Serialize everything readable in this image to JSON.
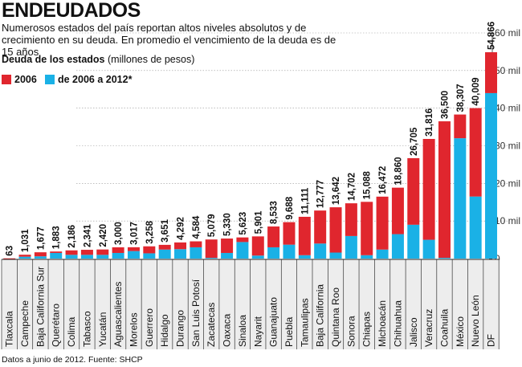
{
  "title": "ENDEUDADOS",
  "subtitle": "Numerosos estados del país reportan altos niveles absolutos y de crecimiento en su deuda. En promedio el vencimiento de la deuda es de 15 años",
  "section_bold": "Deuda de los estados",
  "section_unit": " (millones de pesos)",
  "source": "Datos a junio de 2012. Fuente: SHCP",
  "colors": {
    "red": "#e0262e",
    "blue": "#1ab1e6",
    "grid": "#999999"
  },
  "chart_data": {
    "type": "bar",
    "stacked": true,
    "ylim": [
      0,
      60000
    ],
    "yticks": [
      {
        "value": 0,
        "label": "0"
      },
      {
        "value": 10000,
        "label": "10 mil"
      },
      {
        "value": 20000,
        "label": "20 mil"
      },
      {
        "value": 30000,
        "label": "30 mil"
      },
      {
        "value": 40000,
        "label": "40 mil"
      },
      {
        "value": 50000,
        "label": "50 mil"
      },
      {
        "value": 60000,
        "label": "60 mil"
      }
    ],
    "categories": [
      "Tlaxcala",
      "Campeche",
      "Baja California Sur",
      "Querétaro",
      "Colima",
      "Tabasco",
      "Yucatán",
      "Aguascalientes",
      "Morelos",
      "Guerrero",
      "Hidalgo",
      "Durango",
      "San Luis Potosí",
      "Zacatecas",
      "Oaxaca",
      "Sinaloa",
      "Nayarit",
      "Guanajuato",
      "Puebla",
      "Tamaulipas",
      "Baja California",
      "Quintana Roo",
      "Sonora",
      "Chiapas",
      "Michoacán",
      "Chihuahua",
      "Jalisco",
      "Veracruz",
      "Coahuila",
      "México",
      "Nuevo León",
      "DF"
    ],
    "total_labels": [
      "63",
      "1,031",
      "1,677",
      "1,883",
      "2,186",
      "2,341",
      "2,420",
      "3,000",
      "3,017",
      "3,258",
      "3,651",
      "4,292",
      "4,584",
      "5,079",
      "5,330",
      "5,623",
      "5,901",
      "8,533",
      "9,688",
      "11,111",
      "12,777",
      "13,642",
      "14,702",
      "15,088",
      "16,472",
      "18,860",
      "26,705",
      "31,816",
      "36,500",
      "38,307",
      "40,009",
      "54,866"
    ],
    "series": [
      {
        "name": "2006",
        "color": "#e0262e",
        "values": [
          63,
          531,
          1077,
          383,
          1186,
          1341,
          1420,
          1500,
          1017,
          1858,
          1251,
          1792,
          1584,
          4879,
          3830,
          1223,
          5101,
          5533,
          5988,
          10211,
          8777,
          12042,
          8702,
          14188,
          14072,
          12360,
          17705,
          26816,
          36300,
          6307,
          23509,
          10866
        ]
      },
      {
        "name": "de 2006 a 2012*",
        "color": "#1ab1e6",
        "values": [
          0,
          500,
          600,
          1500,
          1000,
          1000,
          1000,
          1500,
          2000,
          1400,
          2400,
          2500,
          3000,
          200,
          1500,
          4400,
          800,
          3000,
          3700,
          900,
          4000,
          1600,
          6000,
          900,
          2400,
          6500,
          9000,
          5000,
          200,
          32000,
          16500,
          44000
        ]
      }
    ]
  }
}
